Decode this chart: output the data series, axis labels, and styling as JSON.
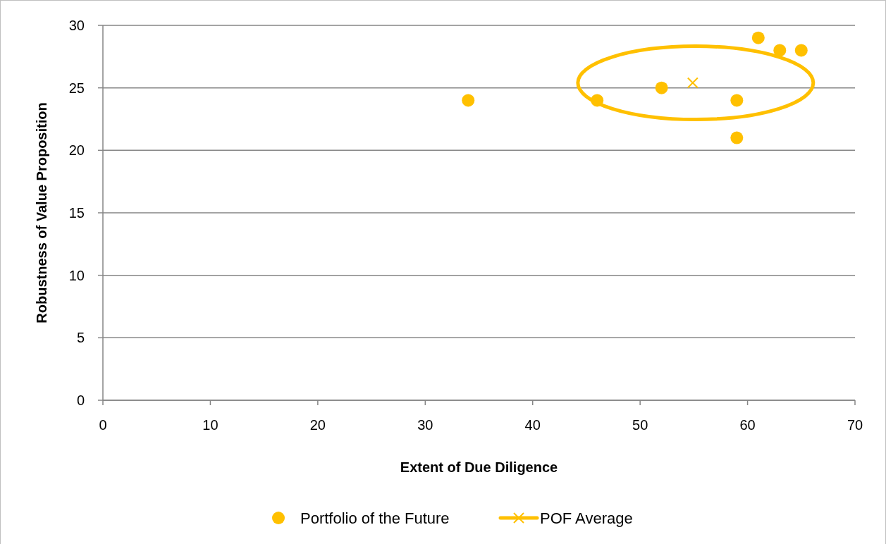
{
  "chart_data": {
    "type": "scatter",
    "xlabel": "Extent of Due Diligence",
    "ylabel": "Robustness of Value Proposition",
    "xlim": [
      0,
      70
    ],
    "xticks": [
      0,
      10,
      20,
      30,
      40,
      50,
      60,
      70
    ],
    "ylim": [
      0,
      30
    ],
    "yticks": [
      0,
      5,
      10,
      15,
      20,
      25,
      30
    ],
    "grid": "y",
    "legend": "bottom",
    "series": [
      {
        "name": "Portfolio of the Future",
        "color": "#ffc000",
        "marker": "circle",
        "x": [
          34,
          46,
          52,
          59,
          59,
          61,
          63,
          65
        ],
        "values": [
          24,
          24,
          25,
          24,
          21,
          29,
          28,
          28
        ]
      },
      {
        "name": "POF Average",
        "color": "#ffc000",
        "marker": "cross",
        "x": [
          54.9
        ],
        "values": [
          25.4
        ]
      }
    ]
  }
}
